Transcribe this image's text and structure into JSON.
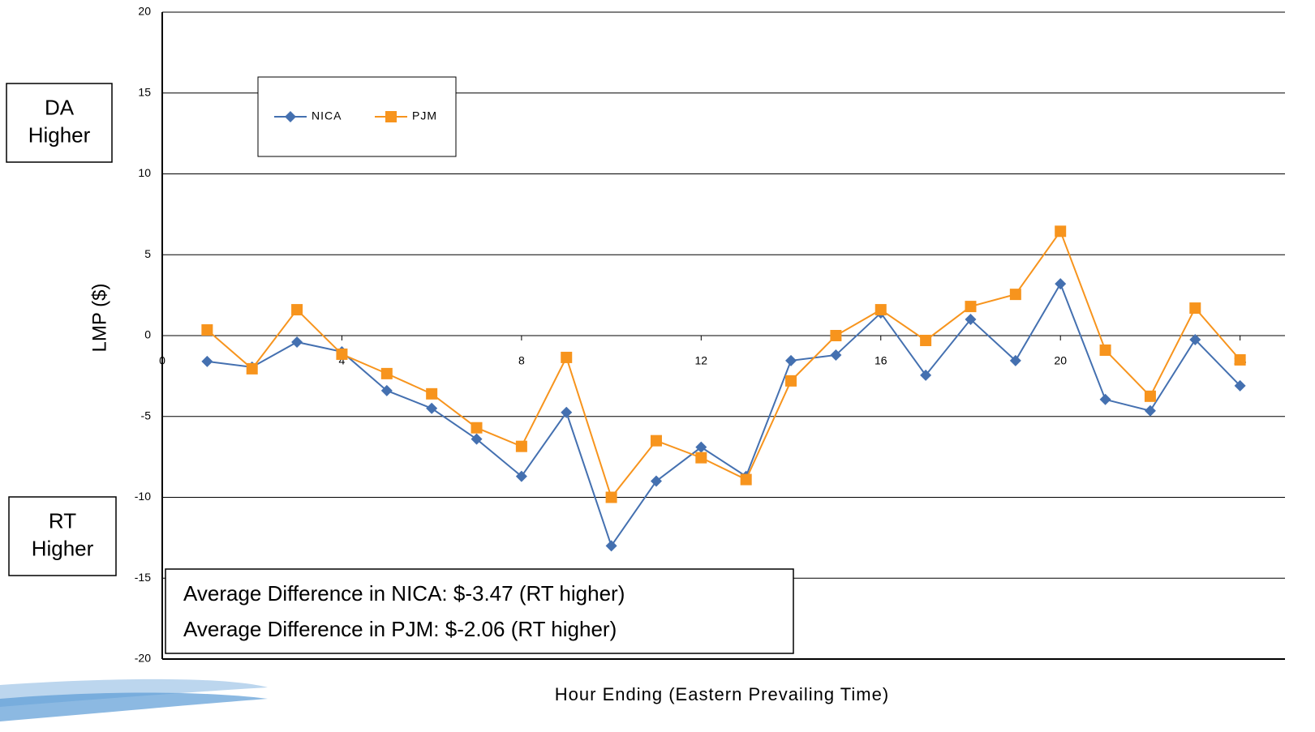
{
  "chart_data": {
    "type": "line",
    "xlabel": "Hour Ending (Eastern Prevailing Time)",
    "ylabel": "LMP ($)",
    "x": [
      1,
      2,
      3,
      4,
      5,
      6,
      7,
      8,
      9,
      10,
      11,
      12,
      13,
      14,
      15,
      16,
      17,
      18,
      19,
      20,
      21,
      22,
      23,
      24
    ],
    "series": [
      {
        "name": "NICA",
        "color": "#4470b0",
        "marker": "diamond",
        "values": [
          -1.6,
          -1.95,
          -0.4,
          -1.0,
          -3.4,
          -4.5,
          -6.4,
          -8.7,
          -4.75,
          -13.0,
          -9.0,
          -6.9,
          -8.7,
          -1.55,
          -1.2,
          1.4,
          -2.45,
          1.0,
          -1.55,
          3.2,
          -3.95,
          -4.65,
          -0.25,
          -3.1
        ]
      },
      {
        "name": "PJM",
        "color": "#f7941d",
        "marker": "square",
        "values": [
          0.35,
          -2.05,
          1.6,
          -1.15,
          -2.35,
          -3.6,
          -5.7,
          -6.85,
          -1.35,
          -10.0,
          -6.5,
          -7.55,
          -8.9,
          -2.8,
          0.0,
          1.6,
          -0.3,
          1.8,
          2.55,
          6.45,
          -0.9,
          -3.75,
          1.7,
          -1.5
        ]
      }
    ],
    "xlim": [
      0,
      25
    ],
    "ylim": [
      -20,
      20
    ],
    "xticks": [
      0,
      4,
      8,
      12,
      16,
      20,
      24
    ],
    "yticks": [
      -20,
      -15,
      -10,
      -5,
      0,
      5,
      10,
      15,
      20
    ],
    "grid": true,
    "legend": "upper left",
    "side_labels": [
      [
        "DA",
        "Higher"
      ],
      [
        "RT",
        "Higher"
      ]
    ],
    "annotations": [
      "Average Difference in NICA: $-3.47 (RT higher)",
      "Average Difference in PJM: $-2.06 (RT higher)"
    ]
  }
}
